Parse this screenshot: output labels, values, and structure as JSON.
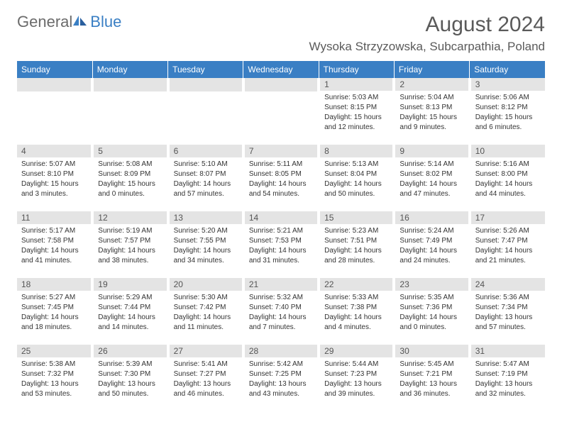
{
  "logo": {
    "general": "General",
    "blue": "Blue"
  },
  "title": "August 2024",
  "location": "Wysoka Strzyzowska, Subcarpathia, Poland",
  "day_headers": [
    "Sunday",
    "Monday",
    "Tuesday",
    "Wednesday",
    "Thursday",
    "Friday",
    "Saturday"
  ],
  "header_bg": "#3a7fc4",
  "header_fg": "#ffffff",
  "daynum_bg": "#e4e4e4",
  "cells": [
    {
      "n": "",
      "sr": "",
      "ss": "",
      "dl1": "",
      "dl2": ""
    },
    {
      "n": "",
      "sr": "",
      "ss": "",
      "dl1": "",
      "dl2": ""
    },
    {
      "n": "",
      "sr": "",
      "ss": "",
      "dl1": "",
      "dl2": ""
    },
    {
      "n": "",
      "sr": "",
      "ss": "",
      "dl1": "",
      "dl2": ""
    },
    {
      "n": "1",
      "sr": "Sunrise: 5:03 AM",
      "ss": "Sunset: 8:15 PM",
      "dl1": "Daylight: 15 hours",
      "dl2": "and 12 minutes."
    },
    {
      "n": "2",
      "sr": "Sunrise: 5:04 AM",
      "ss": "Sunset: 8:13 PM",
      "dl1": "Daylight: 15 hours",
      "dl2": "and 9 minutes."
    },
    {
      "n": "3",
      "sr": "Sunrise: 5:06 AM",
      "ss": "Sunset: 8:12 PM",
      "dl1": "Daylight: 15 hours",
      "dl2": "and 6 minutes."
    },
    {
      "n": "4",
      "sr": "Sunrise: 5:07 AM",
      "ss": "Sunset: 8:10 PM",
      "dl1": "Daylight: 15 hours",
      "dl2": "and 3 minutes."
    },
    {
      "n": "5",
      "sr": "Sunrise: 5:08 AM",
      "ss": "Sunset: 8:09 PM",
      "dl1": "Daylight: 15 hours",
      "dl2": "and 0 minutes."
    },
    {
      "n": "6",
      "sr": "Sunrise: 5:10 AM",
      "ss": "Sunset: 8:07 PM",
      "dl1": "Daylight: 14 hours",
      "dl2": "and 57 minutes."
    },
    {
      "n": "7",
      "sr": "Sunrise: 5:11 AM",
      "ss": "Sunset: 8:05 PM",
      "dl1": "Daylight: 14 hours",
      "dl2": "and 54 minutes."
    },
    {
      "n": "8",
      "sr": "Sunrise: 5:13 AM",
      "ss": "Sunset: 8:04 PM",
      "dl1": "Daylight: 14 hours",
      "dl2": "and 50 minutes."
    },
    {
      "n": "9",
      "sr": "Sunrise: 5:14 AM",
      "ss": "Sunset: 8:02 PM",
      "dl1": "Daylight: 14 hours",
      "dl2": "and 47 minutes."
    },
    {
      "n": "10",
      "sr": "Sunrise: 5:16 AM",
      "ss": "Sunset: 8:00 PM",
      "dl1": "Daylight: 14 hours",
      "dl2": "and 44 minutes."
    },
    {
      "n": "11",
      "sr": "Sunrise: 5:17 AM",
      "ss": "Sunset: 7:58 PM",
      "dl1": "Daylight: 14 hours",
      "dl2": "and 41 minutes."
    },
    {
      "n": "12",
      "sr": "Sunrise: 5:19 AM",
      "ss": "Sunset: 7:57 PM",
      "dl1": "Daylight: 14 hours",
      "dl2": "and 38 minutes."
    },
    {
      "n": "13",
      "sr": "Sunrise: 5:20 AM",
      "ss": "Sunset: 7:55 PM",
      "dl1": "Daylight: 14 hours",
      "dl2": "and 34 minutes."
    },
    {
      "n": "14",
      "sr": "Sunrise: 5:21 AM",
      "ss": "Sunset: 7:53 PM",
      "dl1": "Daylight: 14 hours",
      "dl2": "and 31 minutes."
    },
    {
      "n": "15",
      "sr": "Sunrise: 5:23 AM",
      "ss": "Sunset: 7:51 PM",
      "dl1": "Daylight: 14 hours",
      "dl2": "and 28 minutes."
    },
    {
      "n": "16",
      "sr": "Sunrise: 5:24 AM",
      "ss": "Sunset: 7:49 PM",
      "dl1": "Daylight: 14 hours",
      "dl2": "and 24 minutes."
    },
    {
      "n": "17",
      "sr": "Sunrise: 5:26 AM",
      "ss": "Sunset: 7:47 PM",
      "dl1": "Daylight: 14 hours",
      "dl2": "and 21 minutes."
    },
    {
      "n": "18",
      "sr": "Sunrise: 5:27 AM",
      "ss": "Sunset: 7:45 PM",
      "dl1": "Daylight: 14 hours",
      "dl2": "and 18 minutes."
    },
    {
      "n": "19",
      "sr": "Sunrise: 5:29 AM",
      "ss": "Sunset: 7:44 PM",
      "dl1": "Daylight: 14 hours",
      "dl2": "and 14 minutes."
    },
    {
      "n": "20",
      "sr": "Sunrise: 5:30 AM",
      "ss": "Sunset: 7:42 PM",
      "dl1": "Daylight: 14 hours",
      "dl2": "and 11 minutes."
    },
    {
      "n": "21",
      "sr": "Sunrise: 5:32 AM",
      "ss": "Sunset: 7:40 PM",
      "dl1": "Daylight: 14 hours",
      "dl2": "and 7 minutes."
    },
    {
      "n": "22",
      "sr": "Sunrise: 5:33 AM",
      "ss": "Sunset: 7:38 PM",
      "dl1": "Daylight: 14 hours",
      "dl2": "and 4 minutes."
    },
    {
      "n": "23",
      "sr": "Sunrise: 5:35 AM",
      "ss": "Sunset: 7:36 PM",
      "dl1": "Daylight: 14 hours",
      "dl2": "and 0 minutes."
    },
    {
      "n": "24",
      "sr": "Sunrise: 5:36 AM",
      "ss": "Sunset: 7:34 PM",
      "dl1": "Daylight: 13 hours",
      "dl2": "and 57 minutes."
    },
    {
      "n": "25",
      "sr": "Sunrise: 5:38 AM",
      "ss": "Sunset: 7:32 PM",
      "dl1": "Daylight: 13 hours",
      "dl2": "and 53 minutes."
    },
    {
      "n": "26",
      "sr": "Sunrise: 5:39 AM",
      "ss": "Sunset: 7:30 PM",
      "dl1": "Daylight: 13 hours",
      "dl2": "and 50 minutes."
    },
    {
      "n": "27",
      "sr": "Sunrise: 5:41 AM",
      "ss": "Sunset: 7:27 PM",
      "dl1": "Daylight: 13 hours",
      "dl2": "and 46 minutes."
    },
    {
      "n": "28",
      "sr": "Sunrise: 5:42 AM",
      "ss": "Sunset: 7:25 PM",
      "dl1": "Daylight: 13 hours",
      "dl2": "and 43 minutes."
    },
    {
      "n": "29",
      "sr": "Sunrise: 5:44 AM",
      "ss": "Sunset: 7:23 PM",
      "dl1": "Daylight: 13 hours",
      "dl2": "and 39 minutes."
    },
    {
      "n": "30",
      "sr": "Sunrise: 5:45 AM",
      "ss": "Sunset: 7:21 PM",
      "dl1": "Daylight: 13 hours",
      "dl2": "and 36 minutes."
    },
    {
      "n": "31",
      "sr": "Sunrise: 5:47 AM",
      "ss": "Sunset: 7:19 PM",
      "dl1": "Daylight: 13 hours",
      "dl2": "and 32 minutes."
    }
  ]
}
